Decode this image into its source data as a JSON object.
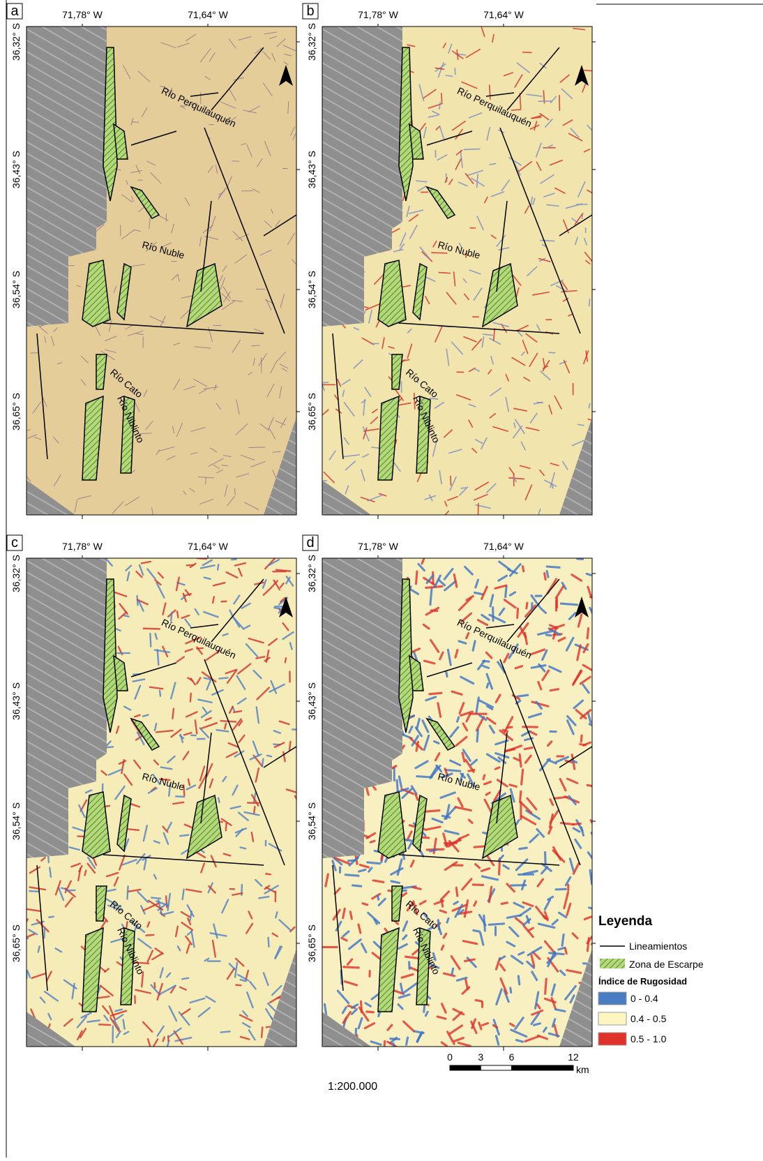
{
  "map_labels": {
    "longitudes": [
      "71,78° W",
      "71,64° W"
    ],
    "latitudes": [
      "36,32° S",
      "36,43° S",
      "36,54° S",
      "36,65° S"
    ],
    "rivers": [
      "Río Perquilauquén",
      "Río Nuble",
      "Río Cato",
      "Río Niblinto"
    ]
  },
  "panels": [
    {
      "letter": "a",
      "base": "#e4cd98",
      "speck": "#8e6f8a",
      "speck2": "#8e6f8a"
    },
    {
      "letter": "b",
      "base": "#f2e4ad",
      "speck": "#d2302a",
      "speck2": "#7d8fc4"
    },
    {
      "letter": "c",
      "base": "#f6ecb8",
      "speck": "#d2302a",
      "speck2": "#4f7fc6"
    },
    {
      "letter": "d",
      "base": "#f8f0c0",
      "speck": "#e0312a",
      "speck2": "#3d74c8"
    }
  ],
  "legend": {
    "title": "Leyenda",
    "line_label": "Lineamientos",
    "hatch_label": "Zona de Escarpe",
    "index_title": "Índice de Rugosidad",
    "classes": [
      {
        "label": "0 - 0.4",
        "color": "#4a7cc4"
      },
      {
        "label": "0.4 - 0.5",
        "color": "#fdf6c0"
      },
      {
        "label": "0.5 - 1.0",
        "color": "#e0312a"
      }
    ]
  },
  "scale": {
    "ratio": "1:200.000",
    "ticks": [
      0,
      3,
      6,
      12
    ],
    "unit": "km"
  }
}
